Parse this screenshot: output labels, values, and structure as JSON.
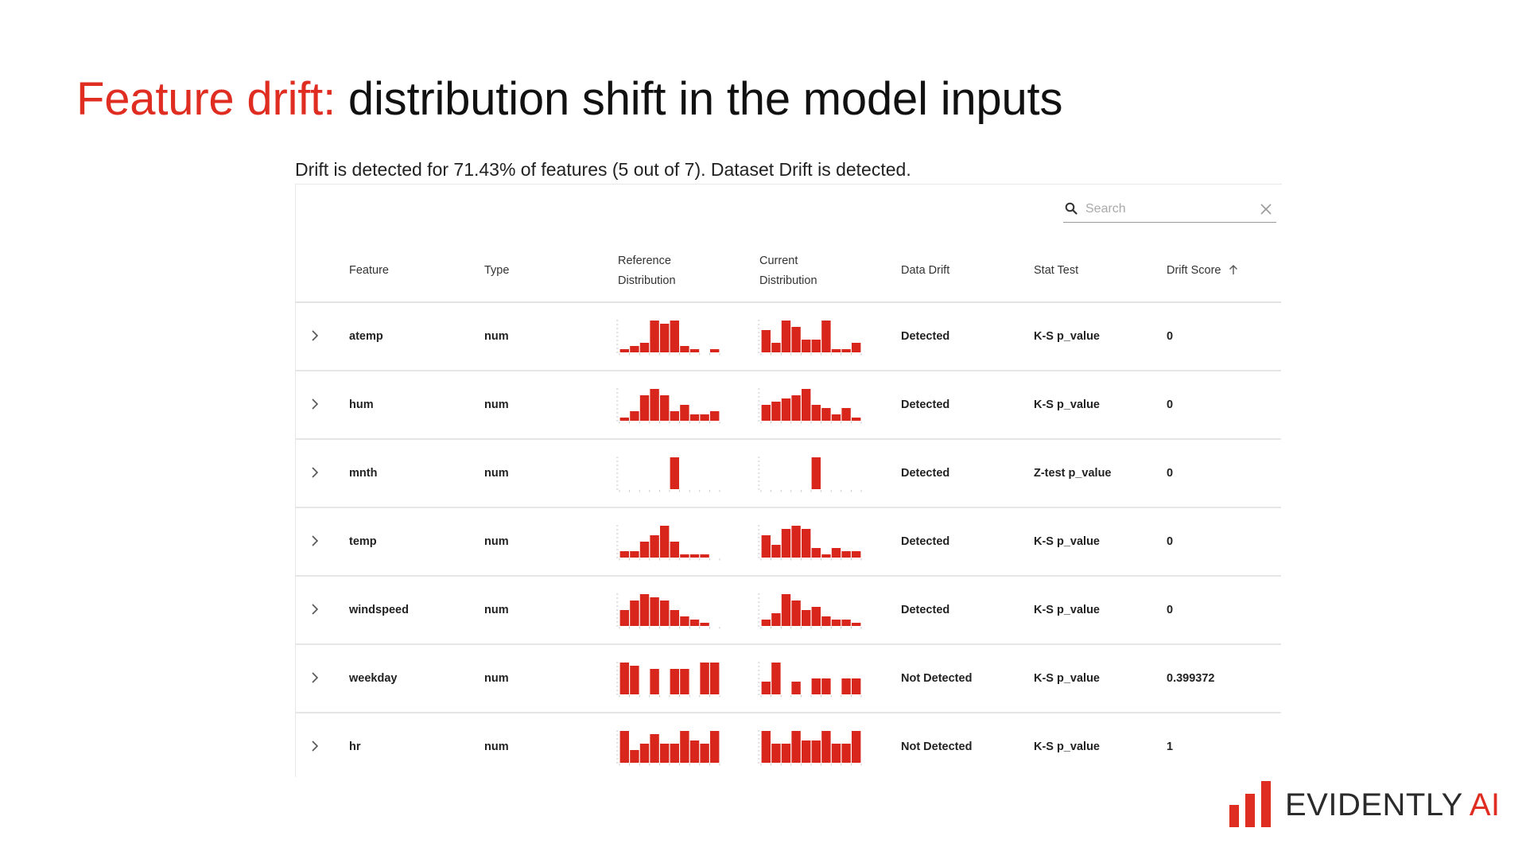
{
  "slide": {
    "title_accent": "Feature drift:",
    "title_rest": "distribution shift in the model inputs",
    "summary": "Drift is detected for 71.43% of features (5 out of 7). Dataset Drift is detected."
  },
  "search": {
    "placeholder": "Search",
    "value": ""
  },
  "table": {
    "headers": {
      "feature": "Feature",
      "type": "Type",
      "reference_line1": "Reference",
      "reference_line2": "Distribution",
      "current_line1": "Current",
      "current_line2": "Distribution",
      "data_drift": "Data Drift",
      "stat_test": "Stat Test",
      "drift_score": "Drift Score"
    },
    "sort": {
      "column": "drift_score",
      "direction": "ascending",
      "icon": "arrow-up-icon"
    },
    "rows": [
      {
        "feature": "atemp",
        "type": "num",
        "data_drift": "Detected",
        "stat_test": "K-S p_value",
        "drift_score": "0",
        "reference_hist": [
          1,
          2,
          3,
          10,
          9,
          10,
          2,
          1,
          0,
          1
        ],
        "current_hist": [
          7,
          3,
          10,
          8,
          4,
          4,
          10,
          1,
          1,
          3
        ]
      },
      {
        "feature": "hum",
        "type": "num",
        "data_drift": "Detected",
        "stat_test": "K-S p_value",
        "drift_score": "0",
        "reference_hist": [
          1,
          3,
          8,
          10,
          8,
          3,
          5,
          2,
          2,
          3
        ],
        "current_hist": [
          5,
          6,
          7,
          8,
          10,
          5,
          4,
          2,
          4,
          1
        ]
      },
      {
        "feature": "mnth",
        "type": "num",
        "data_drift": "Detected",
        "stat_test": "Z-test p_value",
        "drift_score": "0",
        "reference_hist": [
          0,
          0,
          0,
          0,
          0,
          10,
          0,
          0,
          0,
          0
        ],
        "current_hist": [
          0,
          0,
          0,
          0,
          0,
          10,
          0,
          0,
          0,
          0
        ]
      },
      {
        "feature": "temp",
        "type": "num",
        "data_drift": "Detected",
        "stat_test": "K-S p_value",
        "drift_score": "0",
        "reference_hist": [
          2,
          2,
          5,
          7,
          10,
          5,
          1,
          1,
          1,
          0
        ],
        "current_hist": [
          7,
          4,
          9,
          10,
          9,
          3,
          1,
          3,
          2,
          2
        ]
      },
      {
        "feature": "windspeed",
        "type": "num",
        "data_drift": "Detected",
        "stat_test": "K-S p_value",
        "drift_score": "0",
        "reference_hist": [
          5,
          8,
          10,
          9,
          8,
          5,
          3,
          2,
          1,
          0
        ],
        "current_hist": [
          2,
          4,
          10,
          8,
          5,
          6,
          3,
          2,
          2,
          1
        ]
      },
      {
        "feature": "weekday",
        "type": "num",
        "data_drift": "Not Detected",
        "stat_test": "K-S p_value",
        "drift_score": "0.399372",
        "reference_hist": [
          10,
          9,
          0,
          8,
          0,
          8,
          8,
          0,
          10,
          10
        ],
        "current_hist": [
          4,
          10,
          0,
          4,
          0,
          5,
          5,
          0,
          5,
          5
        ]
      },
      {
        "feature": "hr",
        "type": "num",
        "data_drift": "Not Detected",
        "stat_test": "K-S p_value",
        "drift_score": "1",
        "reference_hist": [
          10,
          4,
          6,
          9,
          6,
          6,
          10,
          7,
          6,
          10
        ],
        "current_hist": [
          10,
          6,
          6,
          10,
          7,
          7,
          10,
          6,
          6,
          10
        ]
      }
    ]
  },
  "colors": {
    "accent": "#e02d22",
    "bar": "#d9261c",
    "text": "#222222",
    "rule": "#e6e6e6"
  },
  "logo": {
    "word_dark": "EVIDENTLY",
    "word_accent": "AI"
  }
}
